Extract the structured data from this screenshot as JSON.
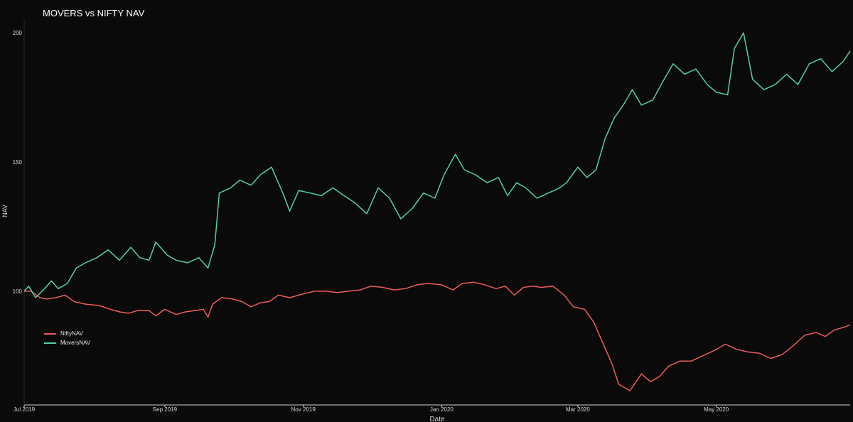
{
  "chart_data": {
    "type": "line",
    "title": "MOVERS vs NIFTY NAV",
    "xlabel": "Date",
    "ylabel": "NAV",
    "xlim": [
      "2019-07-01",
      "2020-06-29"
    ],
    "ylim": [
      56,
      205
    ],
    "x_ticks": [
      {
        "date": "2019-07-01",
        "label": "Jul 2019"
      },
      {
        "date": "2019-09-01",
        "label": "Sep 2019"
      },
      {
        "date": "2019-11-01",
        "label": "Nov 2019"
      },
      {
        "date": "2020-01-01",
        "label": "Jan 2020"
      },
      {
        "date": "2020-03-01",
        "label": "Mar 2020"
      },
      {
        "date": "2020-05-01",
        "label": "May 2020"
      }
    ],
    "y_ticks": [
      100,
      150,
      200
    ],
    "grid": false,
    "legend_position": "left",
    "series": [
      {
        "name": "NiftyNAV",
        "color": "#ef5b5b",
        "points": [
          [
            "2019-07-01",
            100
          ],
          [
            "2019-07-04",
            100
          ],
          [
            "2019-07-08",
            97.5
          ],
          [
            "2019-07-11",
            97
          ],
          [
            "2019-07-15",
            97.5
          ],
          [
            "2019-07-19",
            98.5
          ],
          [
            "2019-07-23",
            96
          ],
          [
            "2019-07-28",
            95
          ],
          [
            "2019-08-03",
            94.5
          ],
          [
            "2019-08-08",
            93
          ],
          [
            "2019-08-12",
            92
          ],
          [
            "2019-08-16",
            91.5
          ],
          [
            "2019-08-20",
            92.5
          ],
          [
            "2019-08-25",
            92.5
          ],
          [
            "2019-08-28",
            90.5
          ],
          [
            "2019-09-01",
            93
          ],
          [
            "2019-09-06",
            91
          ],
          [
            "2019-09-10",
            92
          ],
          [
            "2019-09-14",
            92.5
          ],
          [
            "2019-09-18",
            93
          ],
          [
            "2019-09-20",
            90
          ],
          [
            "2019-09-22",
            95
          ],
          [
            "2019-09-26",
            97.5
          ],
          [
            "2019-10-01",
            97
          ],
          [
            "2019-10-05",
            96
          ],
          [
            "2019-10-09",
            94
          ],
          [
            "2019-10-13",
            95.5
          ],
          [
            "2019-10-17",
            96
          ],
          [
            "2019-10-21",
            98.5
          ],
          [
            "2019-10-26",
            97.5
          ],
          [
            "2019-11-01",
            99
          ],
          [
            "2019-11-06",
            100
          ],
          [
            "2019-11-11",
            100
          ],
          [
            "2019-11-16",
            99.5
          ],
          [
            "2019-11-21",
            100
          ],
          [
            "2019-11-26",
            100.5
          ],
          [
            "2019-12-01",
            102
          ],
          [
            "2019-12-06",
            101.5
          ],
          [
            "2019-12-11",
            100.5
          ],
          [
            "2019-12-16",
            101
          ],
          [
            "2019-12-21",
            102.5
          ],
          [
            "2019-12-26",
            103
          ],
          [
            "2020-01-01",
            102.5
          ],
          [
            "2020-01-06",
            100.5
          ],
          [
            "2020-01-10",
            103
          ],
          [
            "2020-01-15",
            103.5
          ],
          [
            "2020-01-20",
            102.5
          ],
          [
            "2020-01-25",
            101
          ],
          [
            "2020-01-29",
            102
          ],
          [
            "2020-02-02",
            98.5
          ],
          [
            "2020-02-06",
            101.5
          ],
          [
            "2020-02-10",
            102
          ],
          [
            "2020-02-14",
            101.5
          ],
          [
            "2020-02-19",
            102
          ],
          [
            "2020-02-24",
            98.5
          ],
          [
            "2020-02-28",
            94
          ],
          [
            "2020-03-04",
            93
          ],
          [
            "2020-03-08",
            88
          ],
          [
            "2020-03-12",
            80
          ],
          [
            "2020-03-16",
            72
          ],
          [
            "2020-03-19",
            64
          ],
          [
            "2020-03-24",
            61.5
          ],
          [
            "2020-03-29",
            68
          ],
          [
            "2020-04-02",
            65
          ],
          [
            "2020-04-06",
            67
          ],
          [
            "2020-04-10",
            71
          ],
          [
            "2020-04-15",
            73
          ],
          [
            "2020-04-20",
            73
          ],
          [
            "2020-04-25",
            75
          ],
          [
            "2020-04-30",
            77
          ],
          [
            "2020-05-05",
            79.5
          ],
          [
            "2020-05-10",
            77.5
          ],
          [
            "2020-05-15",
            76.5
          ],
          [
            "2020-05-20",
            76
          ],
          [
            "2020-05-25",
            74
          ],
          [
            "2020-05-30",
            75.5
          ],
          [
            "2020-06-04",
            79
          ],
          [
            "2020-06-09",
            83
          ],
          [
            "2020-06-14",
            84
          ],
          [
            "2020-06-18",
            82.5
          ],
          [
            "2020-06-22",
            85
          ],
          [
            "2020-06-26",
            86
          ],
          [
            "2020-06-29",
            87
          ]
        ]
      },
      {
        "name": "MoversNAV",
        "color": "#4fd1a5",
        "points": [
          [
            "2019-07-01",
            100
          ],
          [
            "2019-07-03",
            102
          ],
          [
            "2019-07-06",
            97.5
          ],
          [
            "2019-07-10",
            101
          ],
          [
            "2019-07-13",
            104
          ],
          [
            "2019-07-16",
            101
          ],
          [
            "2019-07-20",
            103
          ],
          [
            "2019-07-24",
            109
          ],
          [
            "2019-07-28",
            111
          ],
          [
            "2019-08-02",
            113
          ],
          [
            "2019-08-07",
            116
          ],
          [
            "2019-08-12",
            112
          ],
          [
            "2019-08-17",
            117
          ],
          [
            "2019-08-21",
            113
          ],
          [
            "2019-08-25",
            112
          ],
          [
            "2019-08-28",
            119
          ],
          [
            "2019-09-02",
            114
          ],
          [
            "2019-09-06",
            112
          ],
          [
            "2019-09-11",
            111
          ],
          [
            "2019-09-16",
            113
          ],
          [
            "2019-09-20",
            109
          ],
          [
            "2019-09-23",
            118
          ],
          [
            "2019-09-25",
            138
          ],
          [
            "2019-09-30",
            140
          ],
          [
            "2019-10-04",
            143
          ],
          [
            "2019-10-09",
            141
          ],
          [
            "2019-10-13",
            145
          ],
          [
            "2019-10-18",
            148
          ],
          [
            "2019-10-23",
            138
          ],
          [
            "2019-10-26",
            131
          ],
          [
            "2019-10-30",
            139
          ],
          [
            "2019-11-04",
            138
          ],
          [
            "2019-11-09",
            137
          ],
          [
            "2019-11-14",
            140
          ],
          [
            "2019-11-19",
            137
          ],
          [
            "2019-11-24",
            134
          ],
          [
            "2019-11-29",
            130
          ],
          [
            "2019-12-04",
            140
          ],
          [
            "2019-12-09",
            136
          ],
          [
            "2019-12-14",
            128
          ],
          [
            "2019-12-19",
            132
          ],
          [
            "2019-12-24",
            138
          ],
          [
            "2019-12-29",
            136
          ],
          [
            "2020-01-02",
            145
          ],
          [
            "2020-01-07",
            153
          ],
          [
            "2020-01-11",
            147
          ],
          [
            "2020-01-16",
            145
          ],
          [
            "2020-01-21",
            142
          ],
          [
            "2020-01-26",
            144
          ],
          [
            "2020-01-30",
            137
          ],
          [
            "2020-02-03",
            142
          ],
          [
            "2020-02-07",
            140
          ],
          [
            "2020-02-12",
            136
          ],
          [
            "2020-02-17",
            138
          ],
          [
            "2020-02-22",
            140
          ],
          [
            "2020-02-25",
            142
          ],
          [
            "2020-03-01",
            148
          ],
          [
            "2020-03-05",
            144
          ],
          [
            "2020-03-09",
            147
          ],
          [
            "2020-03-13",
            159
          ],
          [
            "2020-03-17",
            167
          ],
          [
            "2020-03-21",
            172
          ],
          [
            "2020-03-25",
            178
          ],
          [
            "2020-03-29",
            172
          ],
          [
            "2020-04-03",
            174
          ],
          [
            "2020-04-08",
            182
          ],
          [
            "2020-04-12",
            188
          ],
          [
            "2020-04-17",
            184
          ],
          [
            "2020-04-22",
            186
          ],
          [
            "2020-04-27",
            180
          ],
          [
            "2020-05-01",
            177
          ],
          [
            "2020-05-06",
            176
          ],
          [
            "2020-05-09",
            194
          ],
          [
            "2020-05-13",
            200
          ],
          [
            "2020-05-17",
            182
          ],
          [
            "2020-05-22",
            178
          ],
          [
            "2020-05-27",
            180
          ],
          [
            "2020-06-01",
            184
          ],
          [
            "2020-06-06",
            180
          ],
          [
            "2020-06-11",
            188
          ],
          [
            "2020-06-16",
            190
          ],
          [
            "2020-06-21",
            185
          ],
          [
            "2020-06-26",
            189
          ],
          [
            "2020-06-29",
            193
          ]
        ]
      }
    ]
  }
}
